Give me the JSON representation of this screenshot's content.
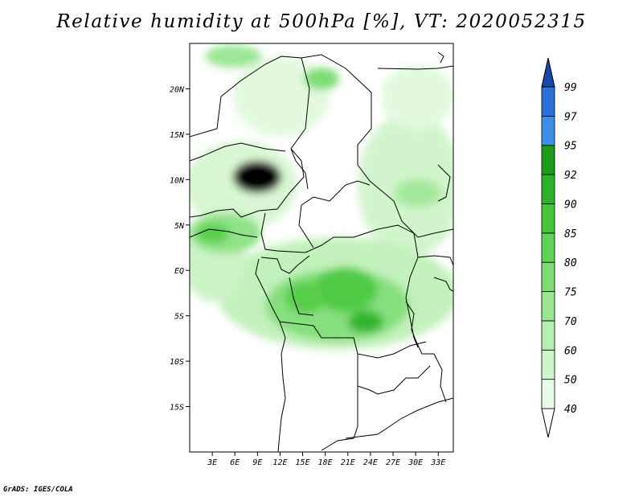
{
  "title": "Relative humidity at 500hPa [%], VT: 2020052315",
  "credit": "GrADS: IGES/COLA",
  "map": {
    "lon_range": [
      0,
      35
    ],
    "lat_range": [
      -20,
      25
    ],
    "lat_ticks": [
      {
        "value": 20,
        "label": "20N"
      },
      {
        "value": 15,
        "label": "15N"
      },
      {
        "value": 10,
        "label": "10N"
      },
      {
        "value": 5,
        "label": "5N"
      },
      {
        "value": 0,
        "label": "EQ"
      },
      {
        "value": -5,
        "label": "5S"
      },
      {
        "value": -10,
        "label": "10S"
      },
      {
        "value": -15,
        "label": "15S"
      }
    ],
    "lon_ticks": [
      {
        "value": 3,
        "label": "3E"
      },
      {
        "value": 6,
        "label": "6E"
      },
      {
        "value": 9,
        "label": "9E"
      },
      {
        "value": 12,
        "label": "12E"
      },
      {
        "value": 15,
        "label": "15E"
      },
      {
        "value": 18,
        "label": "18E"
      },
      {
        "value": 21,
        "label": "21E"
      },
      {
        "value": 24,
        "label": "24E"
      },
      {
        "value": 27,
        "label": "27E"
      },
      {
        "value": 30,
        "label": "30E"
      },
      {
        "value": 33,
        "label": "33E"
      }
    ]
  },
  "colorbar": {
    "levels": [
      "40",
      "50",
      "60",
      "70",
      "75",
      "80",
      "85",
      "90",
      "92",
      "95",
      "97",
      "99"
    ],
    "colors": [
      "#e8fbe6",
      "#d0f5cc",
      "#b6efaf",
      "#98e690",
      "#7ddd73",
      "#5fd353",
      "#45c63b",
      "#2eb22a",
      "#1a9b1a",
      "#3d8ee8",
      "#2a72d9",
      "#1a5bc4",
      "#1449a8"
    ],
    "below_color": "#ffffff"
  }
}
